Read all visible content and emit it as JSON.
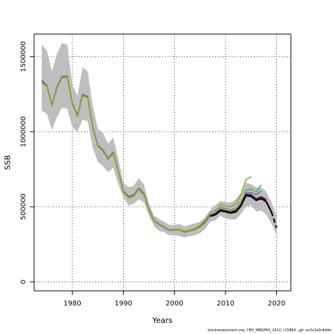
{
  "chart_data": {
    "type": "line",
    "xlabel": "Years",
    "ylabel": "SSB",
    "xlim": [
      1972.5,
      2022.8
    ],
    "ylim": [
      -60000,
      1650000
    ],
    "x_ticks": [
      1980,
      1990,
      2000,
      2010,
      2020
    ],
    "y_ticks": [
      0,
      500000,
      1000000,
      1500000
    ],
    "y_tick_labels": [
      "0",
      "500000",
      "1000000",
      "1500000"
    ],
    "grid": true,
    "grid_style": "dotted",
    "legend": "none",
    "confidence_band": {
      "color": "#bebebe",
      "x": [
        1974,
        1975,
        1976,
        1977,
        1978,
        1979,
        1980,
        1981,
        1982,
        1983,
        1984,
        1985,
        1986,
        1987,
        1988,
        1989,
        1990,
        1991,
        1992,
        1993,
        1994,
        1995,
        1996,
        1997,
        1998,
        1999,
        2000,
        2001,
        2002,
        2003,
        2004,
        2005,
        2006,
        2007,
        2008,
        2009,
        2010,
        2011,
        2012,
        2013,
        2014,
        2015,
        2016,
        2017,
        2018,
        2019,
        2020
      ],
      "upper": [
        1580000,
        1540000,
        1400000,
        1520000,
        1590000,
        1580000,
        1310000,
        1240000,
        1430000,
        1400000,
        1170000,
        1020000,
        990000,
        920000,
        960000,
        820000,
        660000,
        630000,
        640000,
        690000,
        650000,
        520000,
        440000,
        420000,
        400000,
        380000,
        380000,
        385000,
        370000,
        380000,
        390000,
        400000,
        430000,
        480000,
        510000,
        540000,
        530000,
        530000,
        550000,
        590000,
        660000,
        650000,
        630000,
        630000,
        600000,
        530000,
        440000
      ],
      "lower": [
        1140000,
        1120000,
        1010000,
        1100000,
        1160000,
        1150000,
        1030000,
        1000000,
        1080000,
        1070000,
        890000,
        800000,
        770000,
        730000,
        760000,
        650000,
        560000,
        510000,
        520000,
        550000,
        530000,
        440000,
        370000,
        340000,
        330000,
        310000,
        310000,
        305000,
        295000,
        305000,
        310000,
        325000,
        350000,
        400000,
        410000,
        440000,
        420000,
        415000,
        415000,
        450000,
        500000,
        510000,
        470000,
        475000,
        445000,
        390000,
        310000
      ]
    },
    "series": [
      {
        "color": "#4682b4",
        "width": 1.6,
        "x": [
          1974,
          1975,
          1976,
          1977,
          1978,
          1979,
          1980,
          1981,
          1982,
          1983,
          1984,
          1985,
          1986,
          1987,
          1988,
          1989,
          1990,
          1991,
          1992,
          1993,
          1994,
          1995,
          1996,
          1997,
          1998,
          1999,
          2000,
          2001,
          2002,
          2003,
          2004,
          2005,
          2006,
          2007,
          2008,
          2009,
          2010,
          2011,
          2012,
          2013,
          2014,
          2015,
          2016,
          2017
        ],
        "y": [
          1345000,
          1310000,
          1180000,
          1300000,
          1370000,
          1370000,
          1190000,
          1110000,
          1250000,
          1235000,
          1030000,
          910000,
          880000,
          825000,
          865000,
          740000,
          605000,
          570000,
          580000,
          625000,
          590000,
          485000,
          410000,
          385000,
          365000,
          345000,
          350000,
          350000,
          335000,
          345000,
          355000,
          370000,
          400000,
          445000,
          460000,
          495000,
          485000,
          475000,
          485000,
          525000,
          595000,
          595000,
          580000,
          605000
        ]
      },
      {
        "color": "#6b8e23",
        "width": 1.6,
        "x": [
          1974,
          1975,
          1976,
          1977,
          1978,
          1979,
          1980,
          1981,
          1982,
          1983,
          1984,
          1985,
          1986,
          1987,
          1988,
          1989,
          1990,
          1991,
          1992,
          1993,
          1994,
          1995,
          1996,
          1997,
          1998,
          1999,
          2000,
          2001,
          2002,
          2003,
          2004,
          2005,
          2006,
          2007,
          2008,
          2009,
          2010,
          2011,
          2012,
          2013,
          2014
        ],
        "y": [
          1335000,
          1305000,
          1175000,
          1295000,
          1365000,
          1365000,
          1185000,
          1105000,
          1245000,
          1230000,
          1025000,
          905000,
          875000,
          820000,
          860000,
          735000,
          600000,
          565000,
          575000,
          620000,
          585000,
          480000,
          405000,
          380000,
          360000,
          340000,
          345000,
          345000,
          330000,
          340000,
          350000,
          365000,
          395000,
          440000,
          455000,
          490000,
          480000,
          470000,
          480000,
          520000,
          590000
        ]
      },
      {
        "color": "#9aa033",
        "width": 1.6,
        "x": [
          1974,
          1975,
          1976,
          1977,
          1978,
          1979,
          1980,
          1981,
          1982,
          1983,
          1984,
          1985,
          1986,
          1987,
          1988,
          1989,
          1990,
          1991,
          1992,
          1993,
          1994,
          1995,
          1996,
          1997,
          1998,
          1999,
          2000,
          2001,
          2002,
          2003,
          2004,
          2005,
          2006,
          2007,
          2008,
          2009,
          2010,
          2011,
          2012,
          2013,
          2014,
          2015
        ],
        "y": [
          1325000,
          1300000,
          1170000,
          1290000,
          1360000,
          1360000,
          1180000,
          1100000,
          1240000,
          1225000,
          1020000,
          900000,
          870000,
          815000,
          855000,
          730000,
          595000,
          560000,
          570000,
          615000,
          580000,
          478000,
          403000,
          380000,
          362000,
          342000,
          347000,
          348000,
          335000,
          345000,
          357000,
          375000,
          410000,
          460000,
          475000,
          515000,
          505000,
          500000,
          515000,
          580000,
          680000,
          700000
        ]
      },
      {
        "color": "#20b2aa",
        "width": 1.6,
        "x": [
          2008,
          2009,
          2010,
          2011,
          2012,
          2013,
          2014,
          2015,
          2016,
          2017
        ],
        "y": [
          462000,
          498000,
          488000,
          478000,
          490000,
          535000,
          610000,
          615000,
          600000,
          645000
        ]
      },
      {
        "color": "#8fbc50",
        "width": 1.6,
        "x": [
          2008,
          2009,
          2010,
          2011,
          2012,
          2013,
          2014,
          2015,
          2016
        ],
        "y": [
          458000,
          492000,
          482000,
          474000,
          486000,
          530000,
          615000,
          620000,
          600000
        ]
      },
      {
        "color": "#191970",
        "width": 1.6,
        "x": [
          2007,
          2008,
          2009,
          2010,
          2011,
          2012,
          2013,
          2014,
          2015,
          2016,
          2017,
          2018
        ],
        "y": [
          440000,
          450000,
          478000,
          470000,
          462000,
          470000,
          510000,
          580000,
          575000,
          548000,
          560000,
          540000
        ]
      },
      {
        "color": "#8b2252",
        "width": 1.6,
        "x": [
          2007,
          2008,
          2009,
          2010,
          2011,
          2012,
          2013,
          2014,
          2015,
          2016,
          2017,
          2018
        ],
        "y": [
          443000,
          455000,
          483000,
          475000,
          467000,
          476000,
          515000,
          585000,
          582000,
          555000,
          568000,
          548000
        ]
      },
      {
        "color": "#000000",
        "width": 2.2,
        "x": [
          2007,
          2008,
          2009,
          2010,
          2011,
          2012,
          2013,
          2014,
          2015,
          2016,
          2017,
          2018,
          2019
        ],
        "y": [
          437000,
          447000,
          474000,
          467000,
          458000,
          466000,
          505000,
          575000,
          570000,
          543000,
          555000,
          533000,
          465000
        ]
      },
      {
        "color": "#000000",
        "width": 2.2,
        "dash": "6,4",
        "x": [
          2019,
          2020
        ],
        "y": [
          465000,
          360000
        ]
      }
    ]
  },
  "footer": "stockassessment.org, CBH_WBGFAS_2022, r15869 , git: ec2c2a0c6dde"
}
